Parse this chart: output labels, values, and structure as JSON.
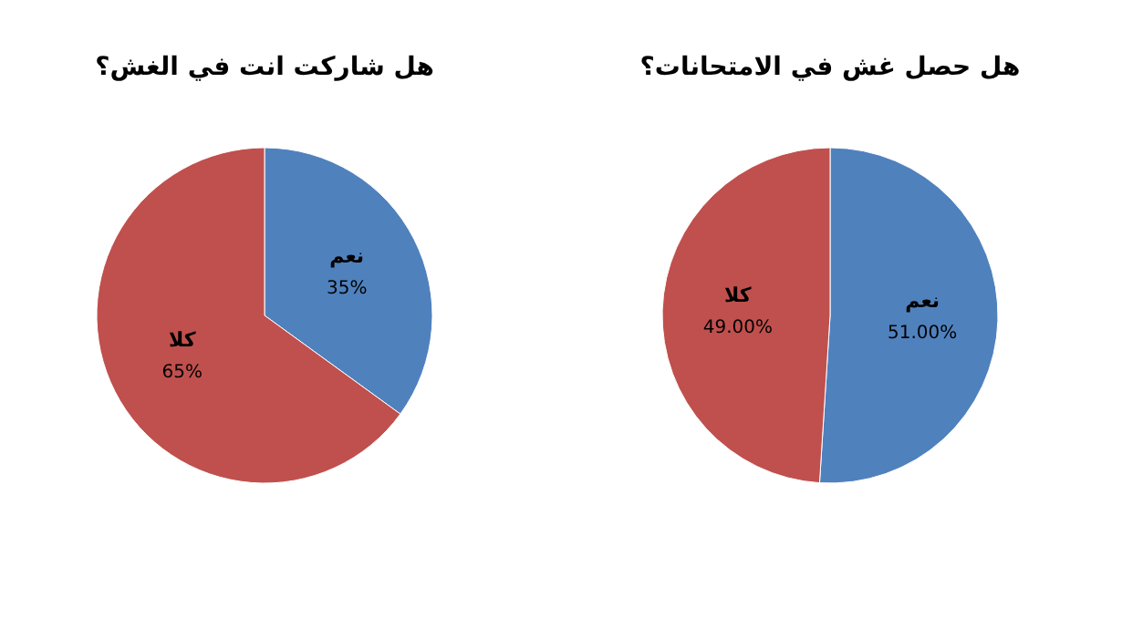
{
  "chart_data": [
    {
      "type": "pie",
      "title": "هل شاركت انت في الغش؟",
      "categories": [
        "نعم",
        "كلا"
      ],
      "values": [
        35,
        65
      ],
      "colors": [
        "#4f81bd",
        "#c0504d"
      ],
      "value_labels": [
        "35%",
        "65%"
      ]
    },
    {
      "type": "pie",
      "title": "هل حصل غش في الامتحانات؟",
      "categories": [
        "نعم",
        "كلا"
      ],
      "values": [
        51,
        49
      ],
      "colors": [
        "#4f81bd",
        "#c0504d"
      ],
      "value_labels": [
        "51.00%",
        "49.00%"
      ]
    }
  ]
}
